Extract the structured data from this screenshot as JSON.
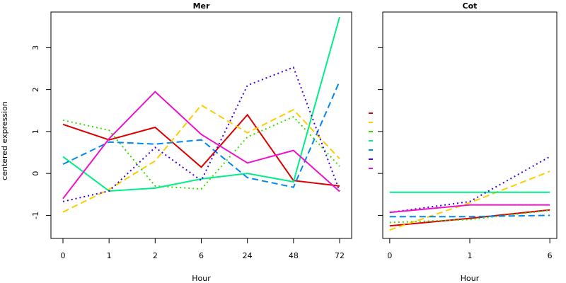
{
  "figure": {
    "ylabel": "centered expression"
  },
  "chart_data": [
    {
      "type": "line",
      "title": "Mer",
      "xlabel": "Hour",
      "categories": [
        "0",
        "1",
        "2",
        "6",
        "24",
        "48",
        "72"
      ],
      "ylim": [
        -1.55,
        3.85
      ],
      "yticks": [
        -1,
        0,
        1,
        2,
        3
      ],
      "grid": false,
      "series": [
        {
          "color": "#dd0000",
          "dash": "solid",
          "values": [
            1.17,
            0.8,
            1.1,
            0.15,
            1.4,
            -0.17,
            -0.3
          ]
        },
        {
          "color": "#ffcc00",
          "dash": "dashed",
          "values": [
            -0.92,
            -0.38,
            0.3,
            1.63,
            0.97,
            1.52,
            0.35
          ]
        },
        {
          "color": "#33dd00",
          "dash": "dotted",
          "values": [
            1.27,
            1.03,
            -0.3,
            -0.37,
            0.87,
            1.35,
            0.17
          ]
        },
        {
          "color": "#00ee88",
          "dash": "solid",
          "values": [
            0.4,
            -0.42,
            -0.35,
            -0.13,
            0.0,
            -0.2,
            3.73
          ]
        },
        {
          "color": "#0088ee",
          "dash": "dashed",
          "values": [
            0.22,
            0.75,
            0.7,
            0.8,
            -0.1,
            -0.33,
            2.2
          ]
        },
        {
          "color": "#4400dd",
          "dash": "dotted",
          "values": [
            -0.67,
            -0.42,
            0.62,
            -0.17,
            2.1,
            2.53,
            -0.42
          ]
        },
        {
          "color": "#ee11cc",
          "dash": "solid",
          "values": [
            -0.6,
            0.83,
            1.95,
            0.93,
            0.25,
            0.55,
            -0.43
          ]
        }
      ]
    },
    {
      "type": "line",
      "title": "Cot",
      "xlabel": "Hour",
      "categories": [
        "0",
        "1",
        "6"
      ],
      "ylim": [
        -1.55,
        3.85
      ],
      "yticks": [
        -1,
        0,
        1,
        2,
        3
      ],
      "grid": false,
      "series": [
        {
          "color": "#dd0000",
          "dash": "solid",
          "values": [
            -1.25,
            -1.07,
            -0.87
          ]
        },
        {
          "color": "#ffcc00",
          "dash": "dashed",
          "values": [
            -1.35,
            -0.7,
            0.05
          ]
        },
        {
          "color": "#33dd00",
          "dash": "dotted",
          "values": [
            -1.17,
            -1.1,
            -0.88
          ]
        },
        {
          "color": "#00ee88",
          "dash": "solid",
          "values": [
            -0.45,
            -0.45,
            -0.45
          ]
        },
        {
          "color": "#0088ee",
          "dash": "dashed",
          "values": [
            -1.03,
            -1.03,
            -1.0
          ]
        },
        {
          "color": "#4400dd",
          "dash": "dotted",
          "values": [
            -0.93,
            -0.67,
            0.4
          ]
        },
        {
          "color": "#ee11cc",
          "dash": "solid",
          "values": [
            -0.93,
            -0.75,
            -0.75
          ]
        }
      ]
    }
  ],
  "legend": {
    "placement": "between-panels",
    "keys": [
      {
        "color": "#dd0000",
        "dash": "solid"
      },
      {
        "color": "#ffcc00",
        "dash": "dashed"
      },
      {
        "color": "#33dd00",
        "dash": "dotted"
      },
      {
        "color": "#00ee88",
        "dash": "solid"
      },
      {
        "color": "#0088ee",
        "dash": "dashed"
      },
      {
        "color": "#4400dd",
        "dash": "dotted"
      },
      {
        "color": "#ee11cc",
        "dash": "solid"
      }
    ]
  }
}
